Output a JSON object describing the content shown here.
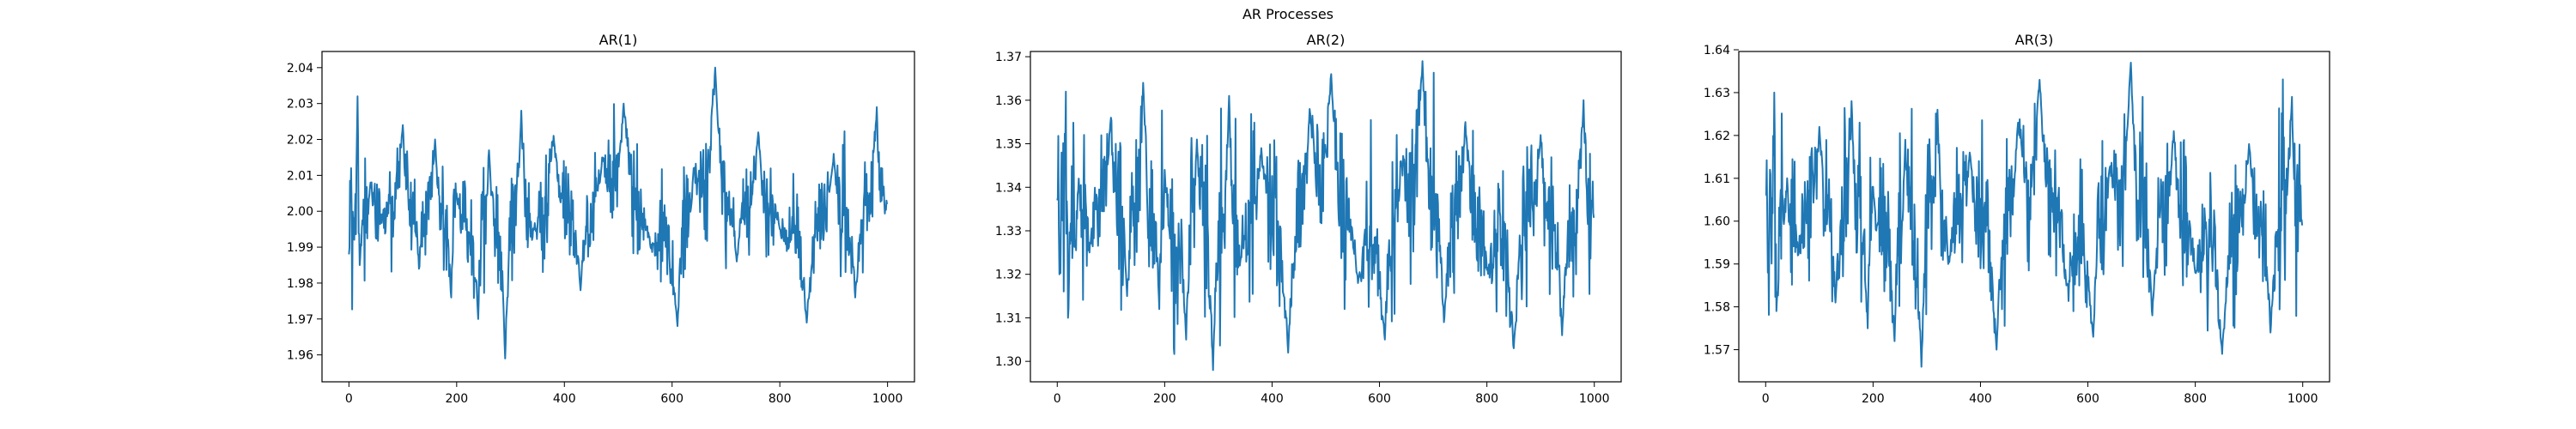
{
  "figure": {
    "suptitle": "AR Processes"
  },
  "chart_data": [
    {
      "type": "line",
      "title": "AR(1)",
      "xlabel": "",
      "ylabel": "",
      "xlim": [
        -50,
        1050
      ],
      "ylim": [
        1.9525,
        2.0445
      ],
      "xticks": [
        0,
        200,
        400,
        600,
        800,
        1000
      ],
      "yticks": [
        1.96,
        1.97,
        1.98,
        1.99,
        2.0,
        2.01,
        2.02,
        2.03,
        2.04
      ],
      "ytick_decimals": 2,
      "grid": false,
      "color": "#1f77b4",
      "n_points": 1000,
      "mean": 2.0,
      "visible_std": 0.01,
      "observed_min": 1.959,
      "observed_max": 2.04,
      "x": [
        0,
        4,
        8,
        16,
        20,
        40,
        60,
        100,
        130,
        160,
        190,
        200,
        240,
        260,
        290,
        320,
        340,
        380,
        430,
        470,
        510,
        560,
        610,
        640,
        680,
        720,
        760,
        800,
        850,
        900,
        940,
        980,
        999
      ],
      "y": [
        1.988,
        2.012,
        1.995,
        2.032,
        1.985,
        2.008,
        1.997,
        2.024,
        1.984,
        2.02,
        1.976,
        2.005,
        1.97,
        2.017,
        1.959,
        2.028,
        1.992,
        2.021,
        1.978,
        2.015,
        2.03,
        1.99,
        1.968,
        2.012,
        2.04,
        1.986,
        2.022,
        1.995,
        1.969,
        2.016,
        1.976,
        2.029,
        2.002
      ]
    },
    {
      "type": "line",
      "title": "AR(2)",
      "xlabel": "",
      "ylabel": "",
      "xlim": [
        -50,
        1050
      ],
      "ylim": [
        1.2953,
        1.3712
      ],
      "xticks": [
        0,
        200,
        400,
        600,
        800,
        1000
      ],
      "yticks": [
        1.3,
        1.31,
        1.32,
        1.33,
        1.34,
        1.35,
        1.36,
        1.37
      ],
      "ytick_decimals": 2,
      "grid": false,
      "color": "#1f77b4",
      "n_points": 1000,
      "mean": 1.333,
      "visible_std": 0.012,
      "observed_min": 1.298,
      "observed_max": 1.369,
      "x": [
        0,
        4,
        8,
        16,
        20,
        40,
        60,
        100,
        130,
        160,
        190,
        200,
        240,
        260,
        290,
        320,
        340,
        380,
        430,
        470,
        510,
        560,
        610,
        640,
        680,
        720,
        760,
        800,
        850,
        900,
        940,
        980,
        999
      ],
      "y": [
        1.337,
        1.32,
        1.348,
        1.362,
        1.31,
        1.342,
        1.325,
        1.356,
        1.315,
        1.364,
        1.312,
        1.344,
        1.305,
        1.351,
        1.298,
        1.361,
        1.322,
        1.349,
        1.302,
        1.358,
        1.366,
        1.318,
        1.305,
        1.346,
        1.369,
        1.309,
        1.355,
        1.321,
        1.303,
        1.352,
        1.306,
        1.36,
        1.333
      ]
    },
    {
      "type": "line",
      "title": "AR(3)",
      "xlabel": "",
      "ylabel": "",
      "xlim": [
        -50,
        1050
      ],
      "ylim": [
        1.5625,
        1.6396
      ],
      "xticks": [
        0,
        200,
        400,
        600,
        800,
        1000
      ],
      "yticks": [
        1.57,
        1.58,
        1.59,
        1.6,
        1.61,
        1.62,
        1.63,
        1.64
      ],
      "ytick_decimals": 2,
      "grid": false,
      "color": "#1f77b4",
      "n_points": 1000,
      "mean": 1.6,
      "visible_std": 0.012,
      "observed_min": 1.566,
      "observed_max": 1.637,
      "x": [
        0,
        4,
        8,
        16,
        20,
        40,
        60,
        100,
        130,
        160,
        190,
        200,
        240,
        260,
        290,
        320,
        340,
        380,
        430,
        470,
        510,
        560,
        610,
        640,
        680,
        720,
        760,
        800,
        850,
        900,
        940,
        980,
        999
      ],
      "y": [
        1.606,
        1.588,
        1.612,
        1.63,
        1.579,
        1.61,
        1.592,
        1.622,
        1.581,
        1.628,
        1.575,
        1.608,
        1.572,
        1.619,
        1.566,
        1.626,
        1.59,
        1.616,
        1.57,
        1.623,
        1.633,
        1.585,
        1.573,
        1.612,
        1.637,
        1.578,
        1.621,
        1.588,
        1.569,
        1.618,
        1.574,
        1.629,
        1.599
      ]
    }
  ]
}
